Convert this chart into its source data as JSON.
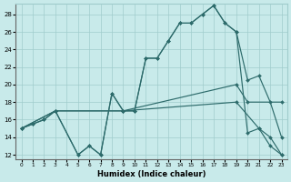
{
  "xlabel": "Humidex (Indice chaleur)",
  "bg_color": "#c8eaea",
  "line_color": "#2d6b6b",
  "grid_color": "#a0cccc",
  "xlim_min": -0.5,
  "xlim_max": 23.5,
  "ylim_min": 11.5,
  "ylim_max": 29.2,
  "yticks": [
    12,
    14,
    16,
    18,
    20,
    22,
    24,
    26,
    28
  ],
  "xticks": [
    0,
    1,
    2,
    3,
    4,
    5,
    6,
    7,
    8,
    9,
    10,
    11,
    12,
    13,
    14,
    15,
    16,
    17,
    18,
    19,
    20,
    21,
    22,
    23
  ],
  "lines": [
    {
      "x": [
        0,
        1,
        2,
        3,
        5,
        6,
        7,
        8,
        9,
        10,
        11,
        12,
        13,
        14,
        15,
        16,
        17,
        18,
        19,
        20,
        21,
        22,
        23
      ],
      "y": [
        15,
        15.5,
        16,
        17,
        12,
        13,
        12,
        19,
        17,
        17,
        23,
        23,
        25,
        27,
        27,
        28,
        29,
        27,
        26,
        20.5,
        21,
        18,
        14
      ]
    },
    {
      "x": [
        0,
        1,
        2,
        3,
        5,
        6,
        7,
        8,
        9,
        10,
        11,
        12,
        13,
        14,
        15,
        16,
        17,
        18,
        19,
        20,
        21,
        22,
        23
      ],
      "y": [
        15,
        15.5,
        16,
        17,
        12,
        13,
        12,
        19,
        17,
        17,
        23,
        23,
        25,
        27,
        27,
        28,
        29,
        27,
        26,
        14.5,
        15,
        14,
        12
      ]
    },
    {
      "x": [
        0,
        3,
        9,
        19,
        20,
        23
      ],
      "y": [
        15,
        17,
        17,
        20,
        18,
        18
      ]
    },
    {
      "x": [
        0,
        3,
        9,
        19,
        21,
        22,
        23
      ],
      "y": [
        15,
        17,
        17,
        18,
        15,
        13,
        12
      ]
    }
  ]
}
